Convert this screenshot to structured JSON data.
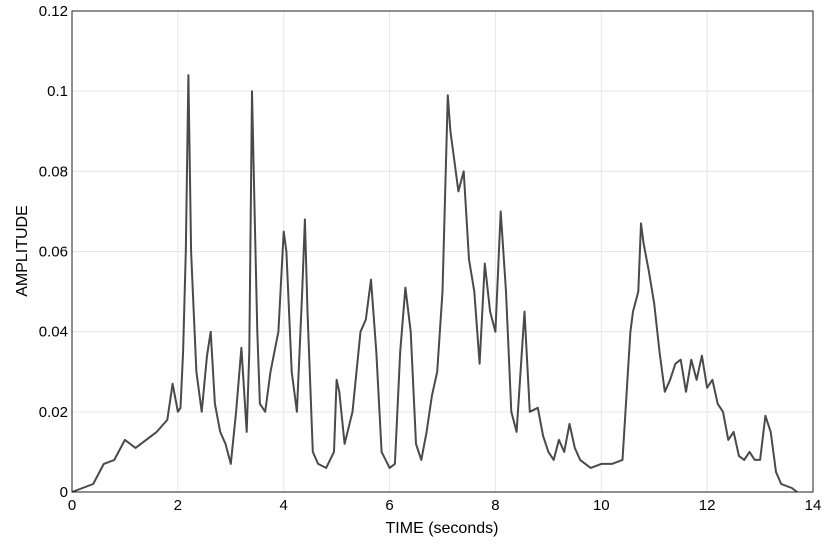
{
  "chart_data": {
    "type": "line",
    "xlabel": "TIME (seconds)",
    "ylabel": "AMPLITUDE",
    "xlim": [
      0,
      14
    ],
    "ylim": [
      0,
      0.12
    ],
    "xticks": [
      "0",
      "2",
      "4",
      "6",
      "8",
      "10",
      "12",
      "14"
    ],
    "yticks": [
      "0",
      "0.02",
      "0.04",
      "0.06",
      "0.08",
      "0.1",
      "0.12"
    ],
    "grid": true,
    "line_color": "#4a4a4a",
    "series": [
      {
        "x": [
          0,
          0.4,
          0.6,
          0.8,
          1.0,
          1.2,
          1.4,
          1.6,
          1.8,
          1.9,
          2.0,
          2.05,
          2.1,
          2.15,
          2.2,
          2.25,
          2.3,
          2.35,
          2.45,
          2.55,
          2.62,
          2.7,
          2.8,
          2.9,
          3.0,
          3.1,
          3.2,
          3.3,
          3.35,
          3.4,
          3.45,
          3.5,
          3.55,
          3.65,
          3.75,
          3.9,
          4.0,
          4.05,
          4.15,
          4.25,
          4.35,
          4.4,
          4.45,
          4.55,
          4.65,
          4.8,
          4.95,
          5.0,
          5.05,
          5.15,
          5.3,
          5.45,
          5.55,
          5.65,
          5.75,
          5.85,
          6.0,
          6.1,
          6.2,
          6.3,
          6.4,
          6.5,
          6.6,
          6.7,
          6.8,
          6.9,
          7.0,
          7.1,
          7.15,
          7.2,
          7.3,
          7.4,
          7.5,
          7.6,
          7.7,
          7.8,
          7.9,
          8.0,
          8.1,
          8.2,
          8.3,
          8.4,
          8.55,
          8.65,
          8.8,
          8.9,
          9.0,
          9.1,
          9.2,
          9.3,
          9.4,
          9.5,
          9.6,
          9.8,
          10.0,
          10.2,
          10.4,
          10.55,
          10.6,
          10.7,
          10.75,
          10.8,
          10.9,
          11.0,
          11.1,
          11.2,
          11.3,
          11.4,
          11.5,
          11.6,
          11.7,
          11.8,
          11.9,
          12.0,
          12.1,
          12.2,
          12.3,
          12.4,
          12.5,
          12.6,
          12.7,
          12.8,
          12.9,
          13.0,
          13.1,
          13.2,
          13.3,
          13.4,
          13.6,
          13.7
        ],
        "y": [
          0,
          0.002,
          0.007,
          0.008,
          0.013,
          0.011,
          0.013,
          0.015,
          0.018,
          0.027,
          0.02,
          0.021,
          0.035,
          0.06,
          0.104,
          0.06,
          0.045,
          0.03,
          0.02,
          0.034,
          0.04,
          0.022,
          0.015,
          0.012,
          0.007,
          0.02,
          0.036,
          0.015,
          0.035,
          0.1,
          0.07,
          0.04,
          0.022,
          0.02,
          0.03,
          0.04,
          0.065,
          0.06,
          0.03,
          0.02,
          0.05,
          0.068,
          0.045,
          0.01,
          0.007,
          0.006,
          0.01,
          0.028,
          0.025,
          0.012,
          0.02,
          0.04,
          0.043,
          0.053,
          0.035,
          0.01,
          0.006,
          0.007,
          0.035,
          0.051,
          0.04,
          0.012,
          0.008,
          0.015,
          0.024,
          0.03,
          0.05,
          0.099,
          0.09,
          0.085,
          0.075,
          0.08,
          0.058,
          0.05,
          0.032,
          0.057,
          0.045,
          0.04,
          0.07,
          0.05,
          0.02,
          0.015,
          0.045,
          0.02,
          0.021,
          0.014,
          0.01,
          0.008,
          0.013,
          0.01,
          0.017,
          0.011,
          0.008,
          0.006,
          0.007,
          0.007,
          0.008,
          0.04,
          0.045,
          0.05,
          0.067,
          0.062,
          0.055,
          0.047,
          0.035,
          0.025,
          0.028,
          0.032,
          0.033,
          0.025,
          0.033,
          0.028,
          0.034,
          0.026,
          0.028,
          0.022,
          0.02,
          0.013,
          0.015,
          0.009,
          0.008,
          0.01,
          0.008,
          0.008,
          0.019,
          0.015,
          0.005,
          0.002,
          0.001,
          0
        ]
      }
    ]
  }
}
